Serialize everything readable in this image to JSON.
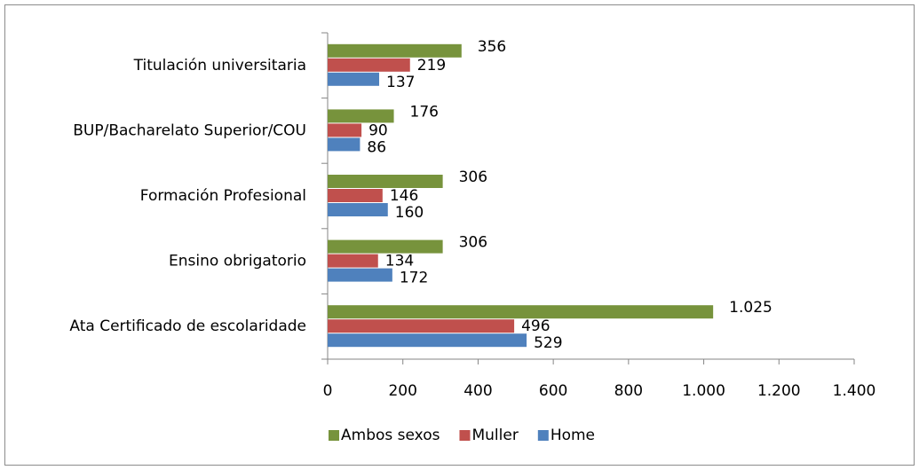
{
  "chart_data": {
    "type": "hbar",
    "categories": [
      "Titulación universitaria",
      "BUP/Bacharelato Superior/COU",
      "Formación Profesional",
      "Ensino obrigatorio",
      "Ata Certificado de escolaridade"
    ],
    "series": [
      {
        "name": "Ambos sexos",
        "color": "#77933c",
        "values": [
          356,
          176,
          306,
          306,
          1025
        ],
        "value_labels": [
          "356",
          "176",
          "306",
          "306",
          "1.025"
        ]
      },
      {
        "name": "Muller",
        "color": "#c0504d",
        "values": [
          219,
          90,
          146,
          134,
          496
        ]
      },
      {
        "name": "Home",
        "color": "#4f81bd",
        "values": [
          137,
          86,
          160,
          172,
          529
        ]
      }
    ],
    "xlim": [
      0,
      1400
    ],
    "xticks": [
      0,
      200,
      400,
      600,
      800,
      {
        "value": 1000,
        "label": "1.000"
      },
      {
        "value": 1200,
        "label": "1.200"
      },
      {
        "value": 1400,
        "label": "1.400"
      }
    ],
    "legend": "bottom"
  }
}
